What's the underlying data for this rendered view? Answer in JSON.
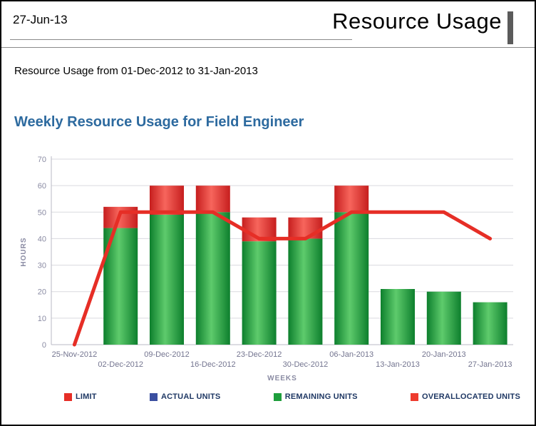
{
  "page": {
    "date": "27-Jun-13",
    "report_title": "Resource Usage",
    "subtitle": "Resource Usage from 01-Dec-2012 to 31-Jan-2013",
    "section_title": "Weekly Resource Usage for Field Engineer"
  },
  "chart_data": {
    "type": "bar",
    "title": "Weekly Resource Usage for Field Engineer",
    "xlabel": "WEEKS",
    "ylabel": "HOURS",
    "ylim": [
      0,
      70
    ],
    "yticks": [
      0,
      10,
      20,
      30,
      40,
      50,
      60,
      70
    ],
    "grid": true,
    "legend_position": "bottom",
    "categories": [
      "25-Nov-2012",
      "02-Dec-2012",
      "09-Dec-2012",
      "16-Dec-2012",
      "23-Dec-2012",
      "30-Dec-2012",
      "06-Jan-2013",
      "13-Jan-2013",
      "20-Jan-2013",
      "27-Jan-2013"
    ],
    "series": [
      {
        "name": "LIMIT",
        "type": "line",
        "color": "#e62e26",
        "values": [
          0,
          50,
          50,
          50,
          40,
          40,
          50,
          50,
          50,
          40
        ]
      },
      {
        "name": "ACTUAL UNITS",
        "type": "bar",
        "color": "#3a4fa0",
        "values": [
          0,
          0,
          0,
          0,
          0,
          0,
          0,
          0,
          0,
          0
        ]
      },
      {
        "name": "REMAINING UNITS",
        "type": "bar",
        "color": "#1e9e3c",
        "gradient": [
          "#0d7f2d",
          "#5ecb6c",
          "#0d7f2d"
        ],
        "values": [
          0,
          44,
          49,
          50,
          39,
          40,
          50,
          21,
          20,
          16
        ]
      },
      {
        "name": "OVERALLOCATED UNITS",
        "type": "bar",
        "color": "#ee3b2e",
        "gradient": [
          "#c61e1e",
          "#f7655c",
          "#c61e1e"
        ],
        "values": [
          0,
          8,
          11,
          10,
          9,
          8,
          10,
          0,
          0,
          0
        ]
      }
    ]
  },
  "legend": {
    "items": [
      {
        "label": "LIMIT",
        "color": "#e62e26"
      },
      {
        "label": "ACTUAL UNITS",
        "color": "#3a4fa0"
      },
      {
        "label": "REMAINING UNITS",
        "color": "#1e9e3c"
      },
      {
        "label": "OVERALLOCATED UNITS",
        "color": "#ee3b2e"
      }
    ]
  }
}
